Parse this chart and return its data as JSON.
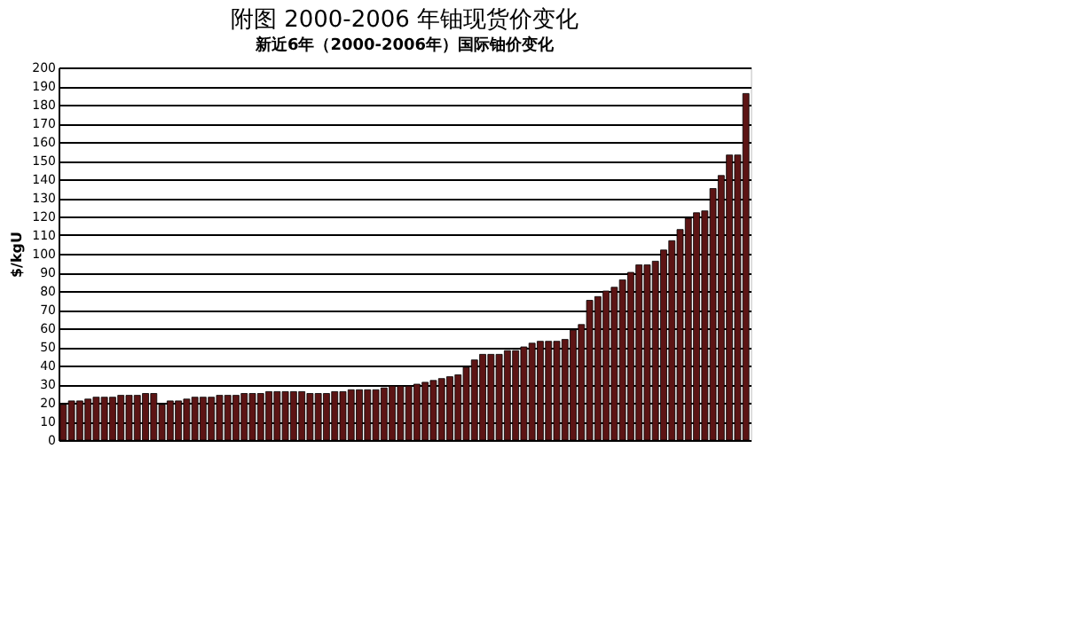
{
  "chart_data": {
    "type": "bar",
    "title": "附图  2000-2006 年铀现货价变化",
    "subtitle": "新近6年（2000-2006年）国际铀价变化",
    "ylabel": "$/kgU",
    "categories": [
      null,
      null,
      null,
      null,
      null,
      null,
      null,
      null,
      null,
      null,
      null,
      null,
      null,
      null,
      null,
      null,
      null,
      null,
      null,
      null,
      null,
      null,
      null,
      null,
      null,
      null,
      null,
      null,
      null,
      null,
      null,
      null,
      null,
      null,
      null,
      null,
      null,
      null,
      null,
      null,
      null,
      null,
      null,
      null,
      null,
      null,
      null,
      null,
      null,
      null,
      null,
      null,
      null,
      null,
      null,
      null,
      null,
      null,
      null,
      null,
      null,
      null,
      null,
      null,
      null,
      null,
      null,
      null,
      null,
      null,
      null,
      null,
      null,
      null,
      null,
      null,
      null,
      null,
      null,
      null,
      null,
      null,
      null,
      null
    ],
    "series": [
      {
        "color": "#5c1414",
        "values": [
          19,
          21,
          21,
          22,
          23,
          23,
          23,
          24,
          24,
          24,
          25,
          25,
          19,
          21,
          21,
          22,
          23,
          23,
          23,
          24,
          24,
          24,
          25,
          25,
          25,
          26,
          26,
          26,
          26,
          26,
          25,
          25,
          25,
          26,
          26,
          27,
          27,
          27,
          27,
          28,
          29,
          29,
          29,
          30,
          31,
          32,
          33,
          34,
          35,
          39,
          43,
          46,
          46,
          46,
          48,
          48,
          50,
          52,
          53,
          53,
          53,
          54,
          59,
          62,
          75,
          77,
          80,
          82,
          86,
          90,
          94,
          94,
          96,
          102,
          107,
          113,
          119,
          122,
          123,
          135,
          142,
          153,
          153,
          186
        ]
      }
    ],
    "ylim": [
      0,
      200
    ],
    "yticks": [
      0,
      10,
      20,
      30,
      40,
      50,
      60,
      70,
      80,
      90,
      100,
      110,
      120,
      130,
      140,
      150,
      160,
      170,
      180,
      190,
      200
    ],
    "grid": "y",
    "tick_labels": "y",
    "legend": false
  }
}
